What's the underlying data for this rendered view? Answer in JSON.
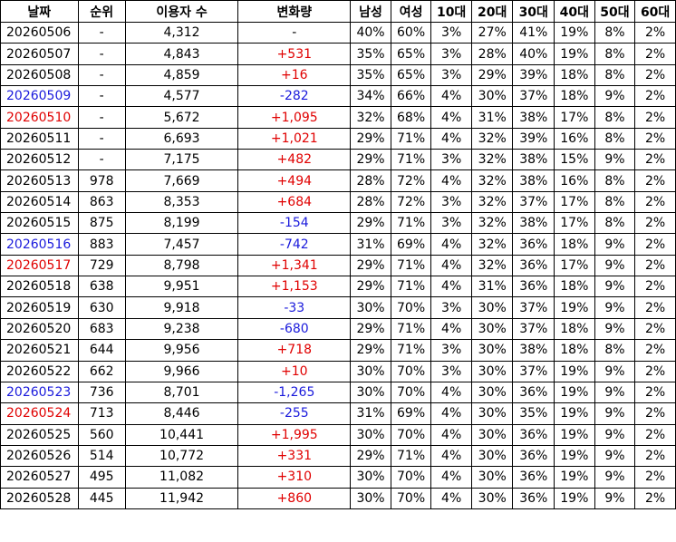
{
  "headers": [
    "날짜",
    "순위",
    "이용자 수",
    "변화량",
    "남성",
    "여성",
    "10대",
    "20대",
    "30대",
    "40대",
    "50대",
    "60대"
  ],
  "rows": [
    {
      "date": "20260506",
      "rank": "-",
      "users": "4,312",
      "change": "-",
      "male": "40%",
      "female": "60%",
      "a10": "3%",
      "a20": "27%",
      "a30": "41%",
      "a40": "19%",
      "a50": "8%",
      "a60": "2%",
      "day": "",
      "dir": ""
    },
    {
      "date": "20260507",
      "rank": "-",
      "users": "4,843",
      "change": "+531",
      "male": "35%",
      "female": "65%",
      "a10": "3%",
      "a20": "28%",
      "a30": "40%",
      "a40": "19%",
      "a50": "8%",
      "a60": "2%",
      "day": "",
      "dir": "pos"
    },
    {
      "date": "20260508",
      "rank": "-",
      "users": "4,859",
      "change": "+16",
      "male": "35%",
      "female": "65%",
      "a10": "3%",
      "a20": "29%",
      "a30": "39%",
      "a40": "18%",
      "a50": "8%",
      "a60": "2%",
      "day": "",
      "dir": "pos"
    },
    {
      "date": "20260509",
      "rank": "-",
      "users": "4,577",
      "change": "-282",
      "male": "34%",
      "female": "66%",
      "a10": "4%",
      "a20": "30%",
      "a30": "37%",
      "a40": "18%",
      "a50": "9%",
      "a60": "2%",
      "day": "sat",
      "dir": "neg"
    },
    {
      "date": "20260510",
      "rank": "-",
      "users": "5,672",
      "change": "+1,095",
      "male": "32%",
      "female": "68%",
      "a10": "4%",
      "a20": "31%",
      "a30": "38%",
      "a40": "17%",
      "a50": "8%",
      "a60": "2%",
      "day": "sun",
      "dir": "pos"
    },
    {
      "date": "20260511",
      "rank": "-",
      "users": "6,693",
      "change": "+1,021",
      "male": "29%",
      "female": "71%",
      "a10": "4%",
      "a20": "32%",
      "a30": "39%",
      "a40": "16%",
      "a50": "8%",
      "a60": "2%",
      "day": "",
      "dir": "pos"
    },
    {
      "date": "20260512",
      "rank": "-",
      "users": "7,175",
      "change": "+482",
      "male": "29%",
      "female": "71%",
      "a10": "3%",
      "a20": "32%",
      "a30": "38%",
      "a40": "15%",
      "a50": "9%",
      "a60": "2%",
      "day": "",
      "dir": "pos"
    },
    {
      "date": "20260513",
      "rank": "978",
      "users": "7,669",
      "change": "+494",
      "male": "28%",
      "female": "72%",
      "a10": "4%",
      "a20": "32%",
      "a30": "38%",
      "a40": "16%",
      "a50": "8%",
      "a60": "2%",
      "day": "",
      "dir": "pos"
    },
    {
      "date": "20260514",
      "rank": "863",
      "users": "8,353",
      "change": "+684",
      "male": "28%",
      "female": "72%",
      "a10": "3%",
      "a20": "32%",
      "a30": "37%",
      "a40": "17%",
      "a50": "8%",
      "a60": "2%",
      "day": "",
      "dir": "pos"
    },
    {
      "date": "20260515",
      "rank": "875",
      "users": "8,199",
      "change": "-154",
      "male": "29%",
      "female": "71%",
      "a10": "3%",
      "a20": "32%",
      "a30": "38%",
      "a40": "17%",
      "a50": "8%",
      "a60": "2%",
      "day": "",
      "dir": "neg"
    },
    {
      "date": "20260516",
      "rank": "883",
      "users": "7,457",
      "change": "-742",
      "male": "31%",
      "female": "69%",
      "a10": "4%",
      "a20": "32%",
      "a30": "36%",
      "a40": "18%",
      "a50": "9%",
      "a60": "2%",
      "day": "sat",
      "dir": "neg"
    },
    {
      "date": "20260517",
      "rank": "729",
      "users": "8,798",
      "change": "+1,341",
      "male": "29%",
      "female": "71%",
      "a10": "4%",
      "a20": "32%",
      "a30": "36%",
      "a40": "17%",
      "a50": "9%",
      "a60": "2%",
      "day": "sun",
      "dir": "pos"
    },
    {
      "date": "20260518",
      "rank": "638",
      "users": "9,951",
      "change": "+1,153",
      "male": "29%",
      "female": "71%",
      "a10": "4%",
      "a20": "31%",
      "a30": "36%",
      "a40": "18%",
      "a50": "9%",
      "a60": "2%",
      "day": "",
      "dir": "pos"
    },
    {
      "date": "20260519",
      "rank": "630",
      "users": "9,918",
      "change": "-33",
      "male": "30%",
      "female": "70%",
      "a10": "3%",
      "a20": "30%",
      "a30": "37%",
      "a40": "19%",
      "a50": "9%",
      "a60": "2%",
      "day": "",
      "dir": "neg"
    },
    {
      "date": "20260520",
      "rank": "683",
      "users": "9,238",
      "change": "-680",
      "male": "29%",
      "female": "71%",
      "a10": "4%",
      "a20": "30%",
      "a30": "37%",
      "a40": "18%",
      "a50": "9%",
      "a60": "2%",
      "day": "",
      "dir": "neg"
    },
    {
      "date": "20260521",
      "rank": "644",
      "users": "9,956",
      "change": "+718",
      "male": "29%",
      "female": "71%",
      "a10": "3%",
      "a20": "30%",
      "a30": "38%",
      "a40": "18%",
      "a50": "8%",
      "a60": "2%",
      "day": "",
      "dir": "pos"
    },
    {
      "date": "20260522",
      "rank": "662",
      "users": "9,966",
      "change": "+10",
      "male": "30%",
      "female": "70%",
      "a10": "3%",
      "a20": "30%",
      "a30": "37%",
      "a40": "19%",
      "a50": "9%",
      "a60": "2%",
      "day": "",
      "dir": "pos"
    },
    {
      "date": "20260523",
      "rank": "736",
      "users": "8,701",
      "change": "-1,265",
      "male": "30%",
      "female": "70%",
      "a10": "4%",
      "a20": "30%",
      "a30": "36%",
      "a40": "19%",
      "a50": "9%",
      "a60": "2%",
      "day": "sat",
      "dir": "neg"
    },
    {
      "date": "20260524",
      "rank": "713",
      "users": "8,446",
      "change": "-255",
      "male": "31%",
      "female": "69%",
      "a10": "4%",
      "a20": "30%",
      "a30": "35%",
      "a40": "19%",
      "a50": "9%",
      "a60": "2%",
      "day": "sun",
      "dir": "neg"
    },
    {
      "date": "20260525",
      "rank": "560",
      "users": "10,441",
      "change": "+1,995",
      "male": "30%",
      "female": "70%",
      "a10": "4%",
      "a20": "30%",
      "a30": "36%",
      "a40": "19%",
      "a50": "9%",
      "a60": "2%",
      "day": "",
      "dir": "pos"
    },
    {
      "date": "20260526",
      "rank": "514",
      "users": "10,772",
      "change": "+331",
      "male": "29%",
      "female": "71%",
      "a10": "4%",
      "a20": "30%",
      "a30": "36%",
      "a40": "19%",
      "a50": "9%",
      "a60": "2%",
      "day": "",
      "dir": "pos"
    },
    {
      "date": "20260527",
      "rank": "495",
      "users": "11,082",
      "change": "+310",
      "male": "30%",
      "female": "70%",
      "a10": "4%",
      "a20": "30%",
      "a30": "36%",
      "a40": "19%",
      "a50": "9%",
      "a60": "2%",
      "day": "",
      "dir": "pos"
    },
    {
      "date": "20260528",
      "rank": "445",
      "users": "11,942",
      "change": "+860",
      "male": "30%",
      "female": "70%",
      "a10": "4%",
      "a20": "30%",
      "a30": "36%",
      "a40": "19%",
      "a50": "9%",
      "a60": "2%",
      "day": "",
      "dir": "pos"
    }
  ],
  "colors": {
    "positive": "#e00000",
    "negative": "#1a1adc",
    "saturday": "#1a1adc",
    "sunday": "#e00000",
    "border": "#000000"
  }
}
